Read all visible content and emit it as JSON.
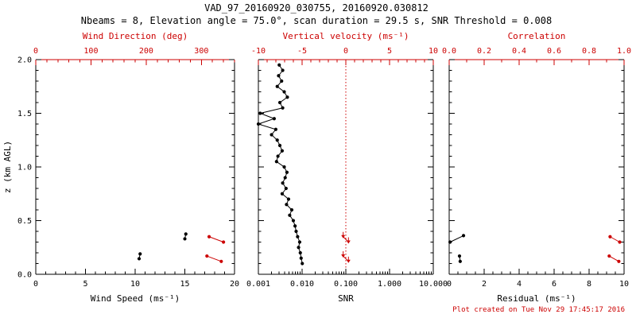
{
  "header": {
    "title": "VAD_97_20160920_030755, 20160920.030812",
    "subtitle": "Nbeams = 8, Elevation angle = 75.0°, scan duration = 29.5 s, SNR Threshold = 0.008"
  },
  "footer": {
    "created": "Plot created on Tue Nov 29 17:45:17 2016"
  },
  "colors": {
    "black": "#000000",
    "red": "#cc0000"
  },
  "chart_data": {
    "type": "scatter",
    "title": "VAD_97_20160920_030755, 20160920.030812",
    "subtitle": "Nbeams = 8, Elevation angle = 75.0°, scan duration = 29.5 s, SNR Threshold = 0.008",
    "y_axis": {
      "label": "z (km AGL)",
      "min": 0,
      "max": 2,
      "tick_values": [
        0,
        0.5,
        1,
        1.5,
        2
      ],
      "tick_labels": [
        "0.0",
        "0.5",
        "1.0",
        "1.5",
        "2.0"
      ],
      "minor_step": 0.1
    },
    "panels": [
      {
        "name": "wind",
        "xlabel": "Wind Speed (ms⁻¹)",
        "top_label": "Wind Direction (deg)",
        "bottom_axis": {
          "min": 0,
          "max": 20,
          "log": false,
          "tick_values": [
            0,
            5,
            10,
            15,
            20
          ],
          "tick_labels": [
            "0",
            "5",
            "10",
            "15",
            "20"
          ],
          "minor_step": 1
        },
        "top_axis": {
          "min": 0,
          "max": 360,
          "log": false,
          "tick_values": [
            0,
            100,
            200,
            300
          ],
          "tick_labels": [
            "0",
            "100",
            "200",
            "300"
          ],
          "minor_step": 20
        },
        "series": [
          {
            "name": "wind-speed",
            "axis": "bottom",
            "color": "#000000",
            "marker": "circle",
            "segments": [
              [
                [
                  10.4,
                  0.145
                ],
                [
                  10.5,
                  0.19
                ]
              ],
              [
                [
                  15.0,
                  0.33
                ],
                [
                  15.1,
                  0.375
                ]
              ]
            ]
          },
          {
            "name": "wind-direction",
            "axis": "top",
            "color": "#cc0000",
            "marker": "circle",
            "segments": [
              [
                [
                  314,
                  0.35
                ],
                [
                  340,
                  0.3
                ]
              ],
              [
                [
                  310,
                  0.17
                ],
                [
                  336,
                  0.12
                ]
              ]
            ]
          }
        ]
      },
      {
        "name": "snr",
        "xlabel": "SNR",
        "top_label": "Vertical velocity (ms⁻¹)",
        "bottom_axis": {
          "min": 0.001,
          "max": 10,
          "log": true,
          "tick_values": [
            0.001,
            0.01,
            0.1,
            1,
            10
          ],
          "tick_labels": [
            "0.001",
            "0.010",
            "0.100",
            "1.000",
            "10.000"
          ]
        },
        "top_axis": {
          "min": -10,
          "max": 10,
          "log": false,
          "tick_values": [
            -10,
            -5,
            0,
            5,
            10
          ],
          "tick_labels": [
            "-10",
            "-5",
            "0",
            "5",
            "10"
          ],
          "minor_step": 1
        },
        "ref_lines": [
          {
            "axis": "top",
            "value": 0,
            "color": "#cc0000"
          }
        ],
        "series": [
          {
            "name": "snr-profile",
            "axis": "bottom",
            "color": "#000000",
            "marker": "circle",
            "segments": [
              [
                [
                  0.003,
                  1.95
                ],
                [
                  0.0036,
                  1.9
                ],
                [
                  0.0029,
                  1.85
                ],
                [
                  0.0034,
                  1.8
                ],
                [
                  0.0027,
                  1.75
                ],
                [
                  0.0039,
                  1.7
                ],
                [
                  0.0046,
                  1.65
                ],
                [
                  0.0031,
                  1.6
                ],
                [
                  0.0036,
                  1.55
                ],
                [
                  0.0011,
                  1.5
                ],
                [
                  0.0023,
                  1.45
                ],
                [
                  0.001,
                  1.4
                ],
                [
                  0.0025,
                  1.35
                ],
                [
                  0.002,
                  1.3
                ],
                [
                  0.0027,
                  1.25
                ],
                [
                  0.0031,
                  1.2
                ],
                [
                  0.0035,
                  1.15
                ],
                [
                  0.0028,
                  1.1
                ],
                [
                  0.0026,
                  1.05
                ],
                [
                  0.0039,
                  1.0
                ],
                [
                  0.0045,
                  0.95
                ],
                [
                  0.0041,
                  0.9
                ],
                [
                  0.0036,
                  0.85
                ],
                [
                  0.0043,
                  0.8
                ],
                [
                  0.0035,
                  0.75
                ],
                [
                  0.0049,
                  0.7
                ],
                [
                  0.0044,
                  0.65
                ],
                [
                  0.0058,
                  0.6
                ],
                [
                  0.0052,
                  0.55
                ],
                [
                  0.0063,
                  0.5
                ],
                [
                  0.0069,
                  0.45
                ],
                [
                  0.0073,
                  0.4
                ],
                [
                  0.0079,
                  0.35
                ],
                [
                  0.0088,
                  0.3
                ],
                [
                  0.0083,
                  0.25
                ],
                [
                  0.0091,
                  0.2
                ],
                [
                  0.0095,
                  0.15
                ],
                [
                  0.0101,
                  0.1
                ]
              ]
            ]
          },
          {
            "name": "vertical-velocity",
            "axis": "top",
            "color": "#cc0000",
            "marker": "arrow-down",
            "segments": [
              [
                [
                  -0.3,
                  0.35
                ],
                [
                  0.3,
                  0.3
                ]
              ],
              [
                [
                  -0.3,
                  0.17
                ],
                [
                  0.3,
                  0.12
                ]
              ]
            ]
          }
        ]
      },
      {
        "name": "residual",
        "xlabel": "Residual (ms⁻¹)",
        "top_label": "Correlation",
        "bottom_axis": {
          "min": 0,
          "max": 10,
          "log": false,
          "tick_values": [
            0,
            2,
            4,
            6,
            8,
            10
          ],
          "tick_labels": [
            "0",
            "2",
            "4",
            "6",
            "8",
            "10"
          ],
          "minor_step": 0.5
        },
        "top_axis": {
          "min": 0,
          "max": 1,
          "log": false,
          "tick_values": [
            0,
            0.2,
            0.4,
            0.6,
            0.8,
            1
          ],
          "tick_labels": [
            "0.0",
            "0.2",
            "0.4",
            "0.6",
            "0.8",
            "1.0"
          ],
          "minor_step": 0.1
        },
        "series": [
          {
            "name": "residual",
            "axis": "bottom",
            "color": "#000000",
            "marker": "circle",
            "segments": [
              [
                [
                  0.05,
                  0.3
                ],
                [
                  0.82,
                  0.36
                ]
              ],
              [
                [
                  0.59,
                  0.17
                ],
                [
                  0.63,
                  0.12
                ]
              ]
            ]
          },
          {
            "name": "correlation",
            "axis": "top",
            "color": "#cc0000",
            "marker": "circle",
            "segments": [
              [
                [
                  0.92,
                  0.35
                ],
                [
                  0.975,
                  0.3
                ]
              ],
              [
                [
                  0.915,
                  0.17
                ],
                [
                  0.97,
                  0.12
                ]
              ]
            ]
          }
        ]
      }
    ]
  }
}
